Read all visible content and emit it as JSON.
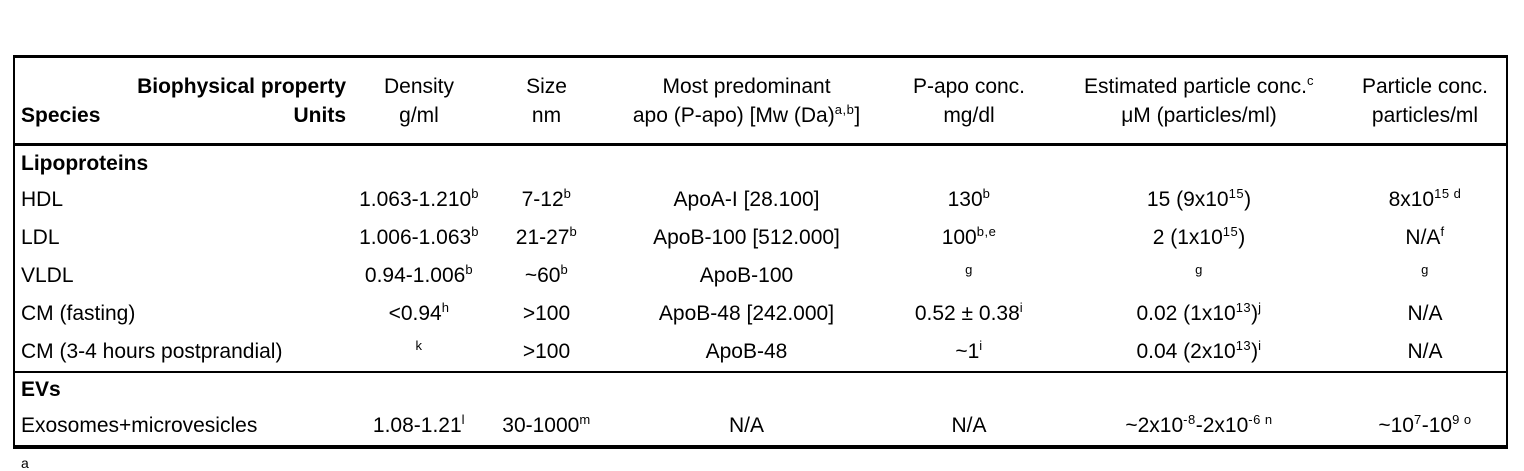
{
  "table": {
    "header": {
      "property_label": "Biophysical property",
      "species_label": "Species",
      "units_label": "Units",
      "columns": [
        {
          "name": [
            {
              "t": "Density"
            }
          ],
          "unit": [
            {
              "t": "g/ml"
            }
          ]
        },
        {
          "name": [
            {
              "t": "Size"
            }
          ],
          "unit": [
            {
              "t": "nm"
            }
          ]
        },
        {
          "name": [
            {
              "t": "Most predominant"
            }
          ],
          "unit": [
            {
              "t": "apo (P-apo) [Mw (Da)"
            },
            {
              "s": "a,b"
            },
            {
              "t": "]"
            }
          ]
        },
        {
          "name": [
            {
              "t": "P-apo conc."
            }
          ],
          "unit": [
            {
              "t": "mg/dl"
            }
          ]
        },
        {
          "name": [
            {
              "t": "Estimated particle conc."
            },
            {
              "s": "c"
            }
          ],
          "unit": [
            {
              "t": "μM (particles/ml)"
            }
          ]
        },
        {
          "name": [
            {
              "t": "Particle conc."
            }
          ],
          "unit": [
            {
              "t": "particles/ml"
            }
          ]
        }
      ]
    },
    "sections": [
      {
        "title": "Lipoproteins",
        "rows": [
          {
            "species": "HDL",
            "cells": [
              [
                {
                  "t": "1.063-1.210"
                },
                {
                  "s": "b"
                }
              ],
              [
                {
                  "t": "7-12"
                },
                {
                  "s": "b"
                }
              ],
              [
                {
                  "t": "ApoA-I [28.100]"
                }
              ],
              [
                {
                  "t": "130"
                },
                {
                  "s": "b"
                }
              ],
              [
                {
                  "t": "15 (9x10"
                },
                {
                  "s": "15"
                },
                {
                  "t": ")"
                }
              ],
              [
                {
                  "t": "8x10"
                },
                {
                  "s": "15 d"
                }
              ]
            ]
          },
          {
            "species": "LDL",
            "cells": [
              [
                {
                  "t": "1.006-1.063"
                },
                {
                  "s": "b"
                }
              ],
              [
                {
                  "t": "21-27"
                },
                {
                  "s": "b"
                }
              ],
              [
                {
                  "t": "ApoB-100 [512.000]"
                }
              ],
              [
                {
                  "t": "100"
                },
                {
                  "s": "b,e"
                }
              ],
              [
                {
                  "t": "2 (1x10"
                },
                {
                  "s": "15"
                },
                {
                  "t": ")"
                }
              ],
              [
                {
                  "t": "N/A"
                },
                {
                  "s": "f"
                }
              ]
            ]
          },
          {
            "species": "VLDL",
            "cells": [
              [
                {
                  "t": "0.94-1.006"
                },
                {
                  "s": "b"
                }
              ],
              [
                {
                  "t": "~60"
                },
                {
                  "s": "b"
                }
              ],
              [
                {
                  "t": "ApoB-100"
                }
              ],
              [
                {
                  "s": "g"
                }
              ],
              [
                {
                  "s": "g"
                }
              ],
              [
                {
                  "s": "g"
                }
              ]
            ]
          },
          {
            "species": "CM (fasting)",
            "cells": [
              [
                {
                  "t": "<0.94"
                },
                {
                  "s": "h"
                }
              ],
              [
                {
                  "t": ">100"
                }
              ],
              [
                {
                  "t": "ApoB-48 [242.000]"
                }
              ],
              [
                {
                  "t": "0.52 ± 0.38"
                },
                {
                  "s": "i"
                }
              ],
              [
                {
                  "t": "0.02 (1x10"
                },
                {
                  "s": "13"
                },
                {
                  "t": ")"
                },
                {
                  "s": "j"
                }
              ],
              [
                {
                  "t": "N/A"
                }
              ]
            ]
          },
          {
            "species": "CM (3-4 hours postprandial)",
            "cells": [
              [
                {
                  "s": "k"
                }
              ],
              [
                {
                  "t": ">100"
                }
              ],
              [
                {
                  "t": "ApoB-48"
                }
              ],
              [
                {
                  "t": "~1"
                },
                {
                  "s": "i"
                }
              ],
              [
                {
                  "t": "0.04 (2x10"
                },
                {
                  "s": "13"
                },
                {
                  "t": ")"
                },
                {
                  "s": "i"
                }
              ],
              [
                {
                  "t": "N/A"
                }
              ]
            ]
          }
        ]
      },
      {
        "title": "EVs",
        "rows": [
          {
            "species": "Exosomes+microvesicles",
            "cells": [
              [
                {
                  "t": "1.08-1.21"
                },
                {
                  "s": "l"
                }
              ],
              [
                {
                  "t": "30-1000"
                },
                {
                  "s": "m"
                }
              ],
              [
                {
                  "t": "N/A"
                }
              ],
              [
                {
                  "t": "N/A"
                }
              ],
              [
                {
                  "t": "~2x10"
                },
                {
                  "s": "-8"
                },
                {
                  "t": "-2x10"
                },
                {
                  "s": "-6 n"
                }
              ],
              [
                {
                  "t": "~10"
                },
                {
                  "s": "7"
                },
                {
                  "t": "-10"
                },
                {
                  "s": "9 o"
                }
              ]
            ]
          }
        ]
      }
    ]
  },
  "footnote_marker": "a"
}
